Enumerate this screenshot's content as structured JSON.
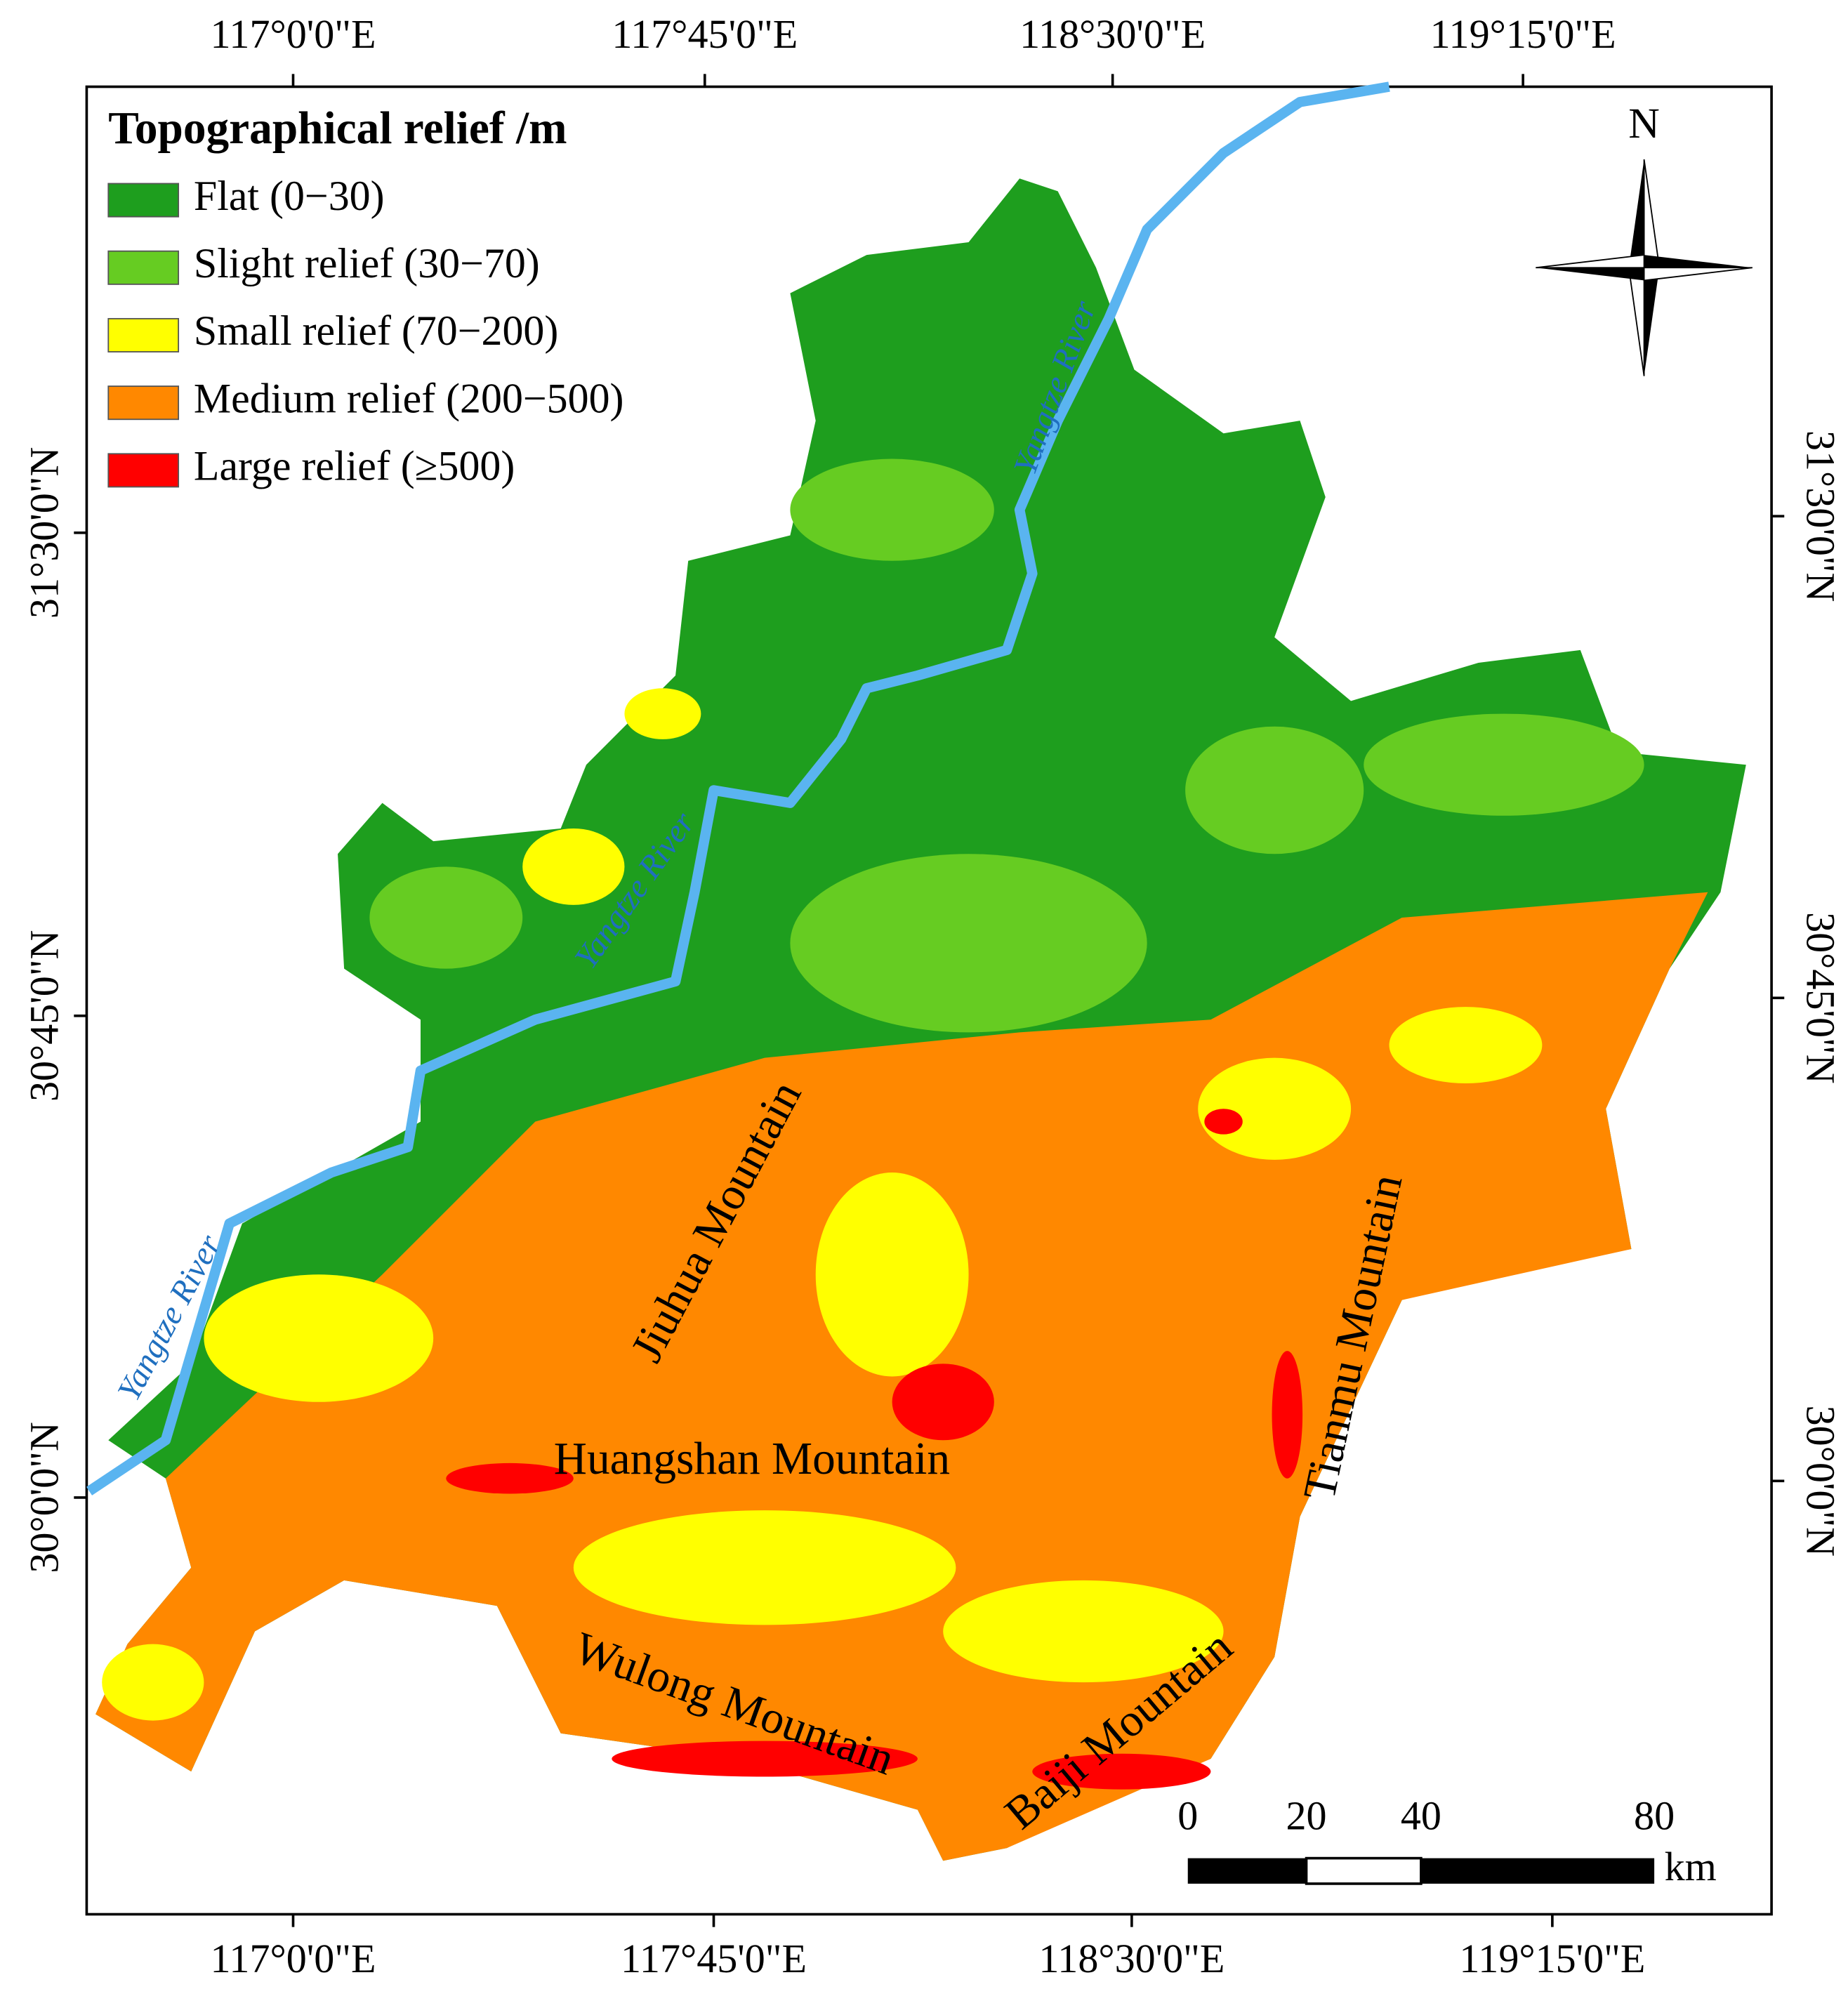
{
  "legend": {
    "title": "Topographical relief /m",
    "items": [
      {
        "label": "Flat (0−30)",
        "color": "#1e9e1e"
      },
      {
        "label": "Slight relief (30−70)",
        "color": "#66cc22"
      },
      {
        "label": "Small relief (70−200)",
        "color": "#ffff00"
      },
      {
        "label": "Medium relief (200−500)",
        "color": "#ff8800"
      },
      {
        "label": "Large relief (≥500)",
        "color": "#ff0000"
      }
    ]
  },
  "axes": {
    "top": [
      "117°0'0\"E",
      "117°45'0\"E",
      "118°30'0\"E",
      "119°15'0\"E"
    ],
    "bottom": [
      "117°0'0\"E",
      "117°45'0\"E",
      "118°30'0\"E",
      "119°15'0\"E"
    ],
    "left": [
      "31°30'0\"N",
      "30°45'0\"N",
      "30°0'0\"N"
    ],
    "right": [
      "31°30'0\"N",
      "30°45'0\"N",
      "30°0'0\"N"
    ]
  },
  "north": "N",
  "scale_bar": {
    "labels": [
      0,
      20,
      40,
      80
    ],
    "unit": "km"
  },
  "places": {
    "rivers": [
      "Yangtze River",
      "Yangtze River",
      "Yangtze River"
    ],
    "mountains": [
      "Jiuhua Mountain",
      "Huangshan Mountain",
      "Wulong Mountain",
      "Baiji Mountain",
      "Tianmu Mountain"
    ]
  }
}
